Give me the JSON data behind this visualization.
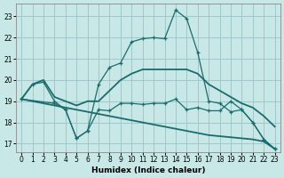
{
  "xlabel": "Humidex (Indice chaleur)",
  "bg_color": "#c8e8e8",
  "grid_color": "#a0c8c8",
  "line_color": "#1a6b6b",
  "x_ticks": [
    0,
    1,
    2,
    3,
    4,
    5,
    6,
    7,
    8,
    9,
    10,
    11,
    12,
    13,
    14,
    15,
    16,
    17,
    18,
    19,
    20,
    21,
    22,
    23
  ],
  "y_ticks": [
    17,
    18,
    19,
    20,
    21,
    22,
    23
  ],
  "ylim": [
    16.6,
    23.6
  ],
  "xlim": [
    -0.5,
    23.5
  ],
  "line_peak_x": [
    0,
    1,
    2,
    3,
    4,
    5,
    6,
    7,
    8,
    9,
    10,
    11,
    12,
    13,
    14,
    15,
    16,
    17,
    18,
    19,
    20,
    21,
    22,
    23
  ],
  "line_peak_y": [
    19.1,
    19.8,
    19.9,
    19.0,
    18.6,
    17.25,
    17.6,
    19.8,
    20.6,
    20.8,
    21.8,
    21.95,
    22.0,
    21.95,
    23.3,
    22.9,
    21.3,
    19.0,
    18.9,
    18.5,
    18.6,
    18.0,
    17.2,
    16.75
  ],
  "line_jagged_x": [
    0,
    3,
    4,
    5,
    6,
    7,
    8,
    9,
    10,
    11,
    12,
    13,
    14,
    15,
    16,
    17,
    18,
    19,
    20,
    21,
    22,
    23
  ],
  "line_jagged_y": [
    19.1,
    18.9,
    18.6,
    17.25,
    17.6,
    18.6,
    18.55,
    18.9,
    18.9,
    18.85,
    18.9,
    18.9,
    19.1,
    18.6,
    18.7,
    18.55,
    18.55,
    19.0,
    18.6,
    18.0,
    17.2,
    16.75
  ],
  "line_rising_x": [
    0,
    1,
    2,
    3,
    4,
    5,
    6,
    7,
    8,
    9,
    10,
    11,
    12,
    13,
    14,
    15,
    16,
    17,
    18,
    19,
    20,
    21,
    22,
    23
  ],
  "line_rising_y": [
    19.1,
    19.8,
    20.0,
    19.2,
    19.0,
    18.8,
    19.0,
    19.0,
    19.5,
    20.0,
    20.3,
    20.5,
    20.5,
    20.5,
    20.5,
    20.5,
    20.3,
    19.8,
    19.5,
    19.2,
    18.9,
    18.7,
    18.3,
    17.8
  ],
  "line_falling_x": [
    0,
    1,
    2,
    3,
    4,
    5,
    6,
    7,
    8,
    9,
    10,
    11,
    12,
    13,
    14,
    15,
    16,
    17,
    18,
    19,
    20,
    21,
    22,
    23
  ],
  "line_falling_y": [
    19.1,
    19.0,
    18.9,
    18.8,
    18.7,
    18.6,
    18.5,
    18.4,
    18.3,
    18.2,
    18.1,
    18.0,
    17.9,
    17.8,
    17.7,
    17.6,
    17.5,
    17.4,
    17.35,
    17.3,
    17.25,
    17.2,
    17.1,
    16.75
  ]
}
